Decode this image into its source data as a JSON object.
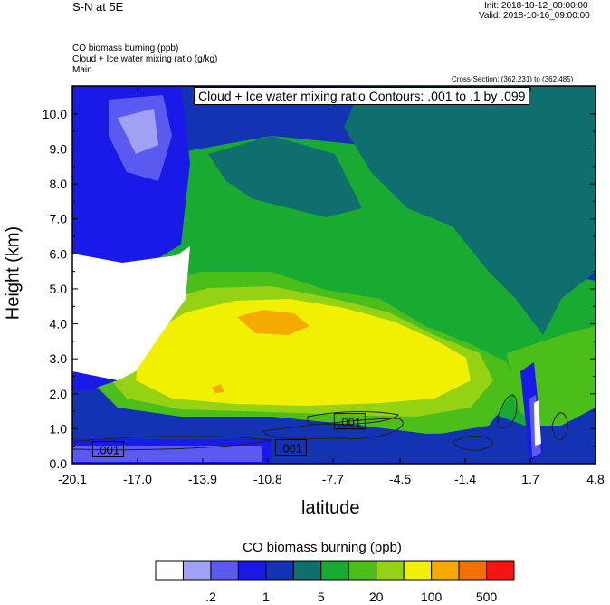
{
  "header": {
    "left_title": "S-N at 5E",
    "init": "Init: 2018-10-12_00:00:00",
    "valid": "Valid: 2018-10-16_09:00:00",
    "field_lines": [
      "CO biomass burning   (ppb)",
      "Cloud + Ice water mixing ratio   (g/kg)",
      "Main"
    ],
    "cross_section": "Cross-Section: (362,231) to (362,485)"
  },
  "chart_data": {
    "type": "heatmap",
    "title": "S-N at 5E",
    "contour_label": "Cloud + Ice water mixing ratio Contours: .001 to .1 by .099",
    "xlabel": "latitude",
    "ylabel": "Height (km)",
    "xlim": [
      -20.1,
      4.8
    ],
    "ylim": [
      0.0,
      10.8
    ],
    "x_ticks": [
      "-20.1",
      "-17.0",
      "-13.9",
      "-10.8",
      "-7.7",
      "-4.5",
      "-1.4",
      "1.7",
      "4.8"
    ],
    "x_tick_values": [
      -20.1,
      -17.0,
      -13.9,
      -10.8,
      -7.7,
      -4.5,
      -1.4,
      1.7,
      4.8
    ],
    "y_ticks": [
      "0.0",
      "1.0",
      "2.0",
      "3.0",
      "4.0",
      "5.0",
      "6.0",
      "7.0",
      "8.0",
      "9.0",
      "10.0"
    ],
    "y_tick_values": [
      0,
      1,
      2,
      3,
      4,
      5,
      6,
      7,
      8,
      9,
      10
    ],
    "contour_value_labels": [
      {
        "text": ".001",
        "lat": -18.4,
        "height": 0.4
      },
      {
        "text": ".001",
        "lat": -9.7,
        "height": 0.45
      },
      {
        "text": ".001",
        "lat": -6.9,
        "height": 1.2
      }
    ],
    "colorbar": {
      "title": "CO biomass burning  (ppb)",
      "colors": [
        "#ffffff",
        "#a0a0f5",
        "#5a5af0",
        "#1a1ae8",
        "#1432b4",
        "#0f6e6e",
        "#19aa32",
        "#4bbe19",
        "#96d214",
        "#f0f000",
        "#f5aa00",
        "#f56e00",
        "#f51414"
      ],
      "labels": [
        ".2",
        "1",
        "5",
        "20",
        "100",
        "500"
      ]
    }
  }
}
